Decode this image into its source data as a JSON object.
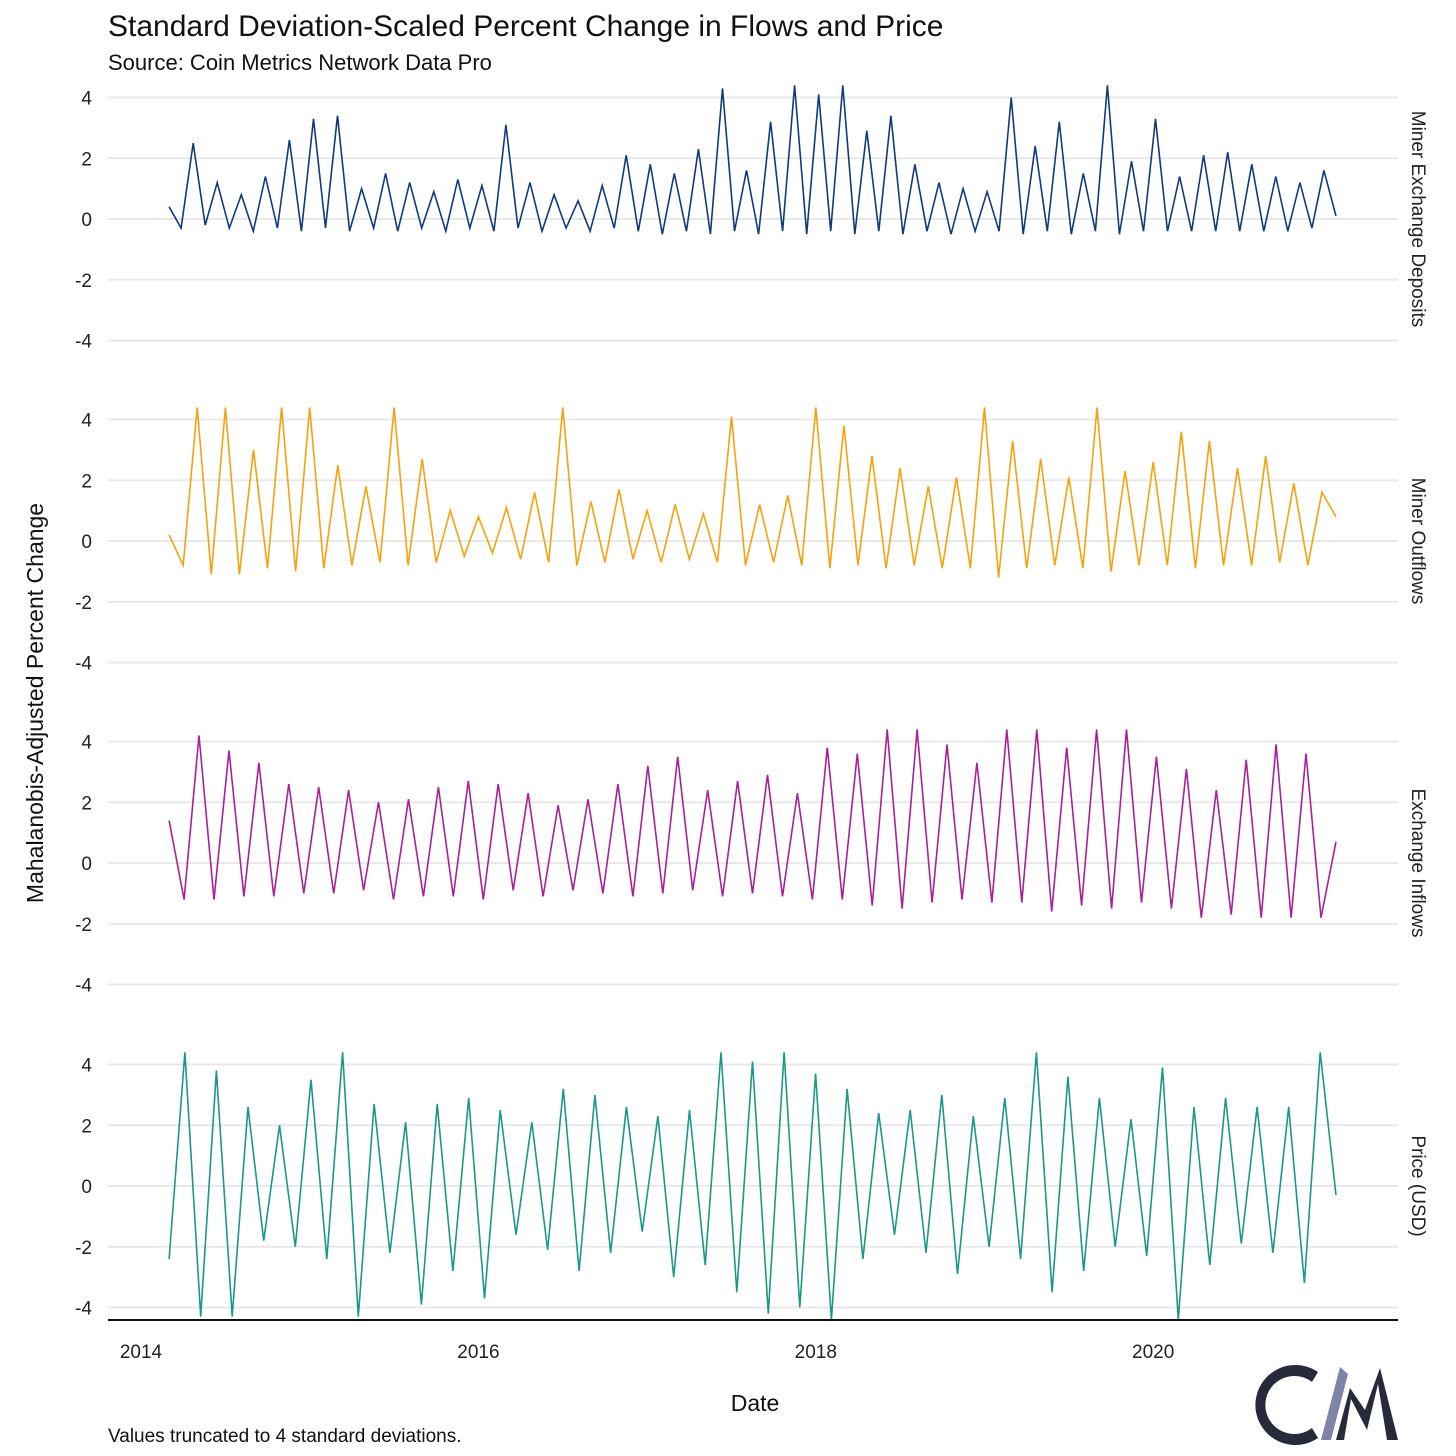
{
  "chart_data": {
    "type": "line",
    "title": "Standard Deviation-Scaled Percent Change in Flows and Price",
    "subtitle": "Source: Coin Metrics Network Data Pro",
    "xlabel": "Date",
    "ylabel": "Mahalanobis-Adjusted Percent Change",
    "footnote": "Values truncated to 4 standard deviations.",
    "x_ticks": [
      "2014",
      "2016",
      "2018",
      "2020"
    ],
    "x_range": [
      "2014-03-01",
      "2021-02-01"
    ],
    "ylim": [
      -4.4,
      4.4
    ],
    "y_ticks": [
      4,
      2,
      0,
      -2,
      -4
    ],
    "grid": true,
    "layout": "faceted, 4 panels stacked vertically, facet labels on right",
    "series": [
      {
        "name": "Miner Exchange Deposits",
        "color": "#0f3b7d",
        "values": [
          0.4,
          -0.3,
          2.5,
          -0.2,
          1.2,
          -0.3,
          0.8,
          -0.4,
          1.4,
          -0.3,
          2.6,
          -0.4,
          3.3,
          -0.3,
          3.4,
          -0.4,
          1.0,
          -0.3,
          1.5,
          -0.4,
          1.2,
          -0.3,
          0.9,
          -0.4,
          1.3,
          -0.3,
          1.1,
          -0.4,
          3.1,
          -0.3,
          1.2,
          -0.4,
          0.8,
          -0.3,
          0.6,
          -0.4,
          1.1,
          -0.3,
          2.1,
          -0.4,
          1.8,
          -0.5,
          1.5,
          -0.4,
          2.3,
          -0.5,
          4.3,
          -0.4,
          1.6,
          -0.5,
          3.2,
          -0.4,
          4.4,
          -0.5,
          4.1,
          -0.4,
          4.4,
          -0.5,
          2.9,
          -0.4,
          3.4,
          -0.5,
          1.8,
          -0.4,
          1.2,
          -0.5,
          1.0,
          -0.4,
          0.9,
          -0.4,
          4.0,
          -0.5,
          2.4,
          -0.4,
          3.2,
          -0.5,
          1.5,
          -0.4,
          4.4,
          -0.5,
          1.9,
          -0.4,
          3.3,
          -0.4,
          1.4,
          -0.4,
          2.1,
          -0.4,
          2.2,
          -0.4,
          1.8,
          -0.4,
          1.4,
          -0.4,
          1.2,
          -0.3,
          1.6,
          0.1
        ]
      },
      {
        "name": "Miner Outflows",
        "color": "#f7a10c",
        "values": [
          0.2,
          -0.8,
          4.4,
          -1.1,
          4.4,
          -1.1,
          3.0,
          -0.9,
          4.4,
          -1.0,
          4.4,
          -0.9,
          2.5,
          -0.8,
          1.8,
          -0.7,
          4.4,
          -0.8,
          2.7,
          -0.7,
          1.0,
          -0.5,
          0.8,
          -0.4,
          1.1,
          -0.6,
          1.6,
          -0.7,
          4.4,
          -0.8,
          1.3,
          -0.7,
          1.7,
          -0.6,
          1.0,
          -0.7,
          1.2,
          -0.6,
          0.9,
          -0.7,
          4.1,
          -0.8,
          1.2,
          -0.7,
          1.5,
          -0.8,
          4.4,
          -0.9,
          3.8,
          -0.8,
          2.8,
          -0.9,
          2.4,
          -0.8,
          1.8,
          -0.9,
          2.1,
          -0.9,
          4.4,
          -1.2,
          3.3,
          -0.9,
          2.7,
          -0.8,
          2.1,
          -0.9,
          4.4,
          -1.0,
          2.3,
          -0.8,
          2.6,
          -0.8,
          3.6,
          -0.9,
          3.3,
          -0.8,
          2.4,
          -0.8,
          2.8,
          -0.7,
          1.9,
          -0.8,
          1.6,
          0.8
        ]
      },
      {
        "name": "Exchange Inflows",
        "color": "#a8219b",
        "values": [
          1.4,
          -1.2,
          4.2,
          -1.2,
          3.7,
          -1.1,
          3.3,
          -1.1,
          2.6,
          -1.0,
          2.5,
          -1.0,
          2.4,
          -0.9,
          2.0,
          -1.2,
          2.1,
          -1.1,
          2.5,
          -1.1,
          2.7,
          -1.2,
          2.6,
          -0.9,
          2.3,
          -1.1,
          1.9,
          -0.9,
          2.1,
          -1.0,
          2.6,
          -1.1,
          3.2,
          -1.0,
          3.5,
          -0.9,
          2.4,
          -1.1,
          2.7,
          -1.0,
          2.9,
          -1.1,
          2.3,
          -1.2,
          3.8,
          -1.2,
          3.6,
          -1.4,
          4.4,
          -1.5,
          4.4,
          -1.3,
          3.9,
          -1.2,
          3.3,
          -1.3,
          4.4,
          -1.3,
          4.4,
          -1.6,
          3.8,
          -1.4,
          4.4,
          -1.5,
          4.4,
          -1.3,
          3.5,
          -1.5,
          3.1,
          -1.8,
          2.4,
          -1.7,
          3.4,
          -1.8,
          3.9,
          -1.8,
          3.6,
          -1.8,
          0.7
        ]
      },
      {
        "name": "Price (USD)",
        "color": "#1a998a",
        "values": [
          -2.4,
          4.4,
          -4.3,
          3.8,
          -4.3,
          2.6,
          -1.8,
          2.0,
          -2.0,
          3.5,
          -2.4,
          4.4,
          -4.3,
          2.7,
          -2.2,
          2.1,
          -3.9,
          2.7,
          -2.8,
          2.9,
          -3.7,
          2.5,
          -1.6,
          2.1,
          -2.1,
          3.2,
          -2.8,
          3.0,
          -2.2,
          2.6,
          -1.5,
          2.3,
          -3.0,
          2.5,
          -2.6,
          4.4,
          -3.5,
          4.1,
          -4.2,
          4.4,
          -4.0,
          3.7,
          -4.4,
          3.2,
          -2.4,
          2.4,
          -1.6,
          2.5,
          -2.2,
          3.0,
          -2.9,
          2.3,
          -2.0,
          2.9,
          -2.4,
          4.4,
          -3.5,
          3.6,
          -2.8,
          2.9,
          -2.0,
          2.2,
          -2.3,
          3.9,
          -4.4,
          2.6,
          -2.6,
          2.9,
          -1.9,
          2.6,
          -2.2,
          2.6,
          -3.2,
          4.4,
          -0.3
        ]
      }
    ]
  },
  "logo": {
    "text": "CM",
    "colors": [
      "#262a3b",
      "#7d84a6"
    ]
  }
}
